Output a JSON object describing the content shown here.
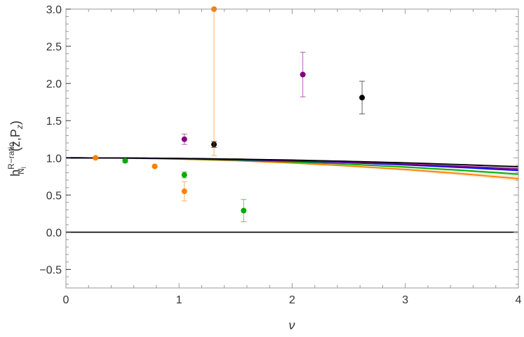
{
  "chart_data": {
    "type": "scatter",
    "xlabel": "ν",
    "ylabel": {
      "base": "h",
      "sup": "R−ratio",
      "sub": "N",
      "subsub": "l",
      "args": "(z,P",
      "args_sub": "z",
      "args_end": ")"
    },
    "xlim": [
      0,
      4
    ],
    "ylim": [
      -0.75,
      3.0
    ],
    "xticks": [
      0,
      1,
      2,
      3,
      4
    ],
    "xtick_labels": [
      "0",
      "1",
      "2",
      "3",
      "4"
    ],
    "yticks": [
      -0.5,
      0.0,
      0.5,
      1.0,
      1.5,
      2.0,
      2.5,
      3.0
    ],
    "ytick_labels": [
      "−0.5",
      "0.0",
      "0.5",
      "1.0",
      "1.5",
      "2.0",
      "2.5",
      "3.0"
    ],
    "grid": false,
    "reference_line_y": 0,
    "points": [
      {
        "x": 0.262,
        "y": 1.0,
        "err": 0.01,
        "color": "#ff7f00"
      },
      {
        "x": 0.524,
        "y": 0.96,
        "err": 0.02,
        "color": "#00aa00"
      },
      {
        "x": 0.785,
        "y": 0.885,
        "err": 0.015,
        "color": "#ff7f00"
      },
      {
        "x": 1.047,
        "y": 1.25,
        "err": 0.07,
        "color": "#800080"
      },
      {
        "x": 1.047,
        "y": 0.77,
        "err": 0.04,
        "color": "#00aa00"
      },
      {
        "x": 1.047,
        "y": 0.55,
        "err": 0.13,
        "color": "#ff7f00"
      },
      {
        "x": 1.309,
        "y": 1.18,
        "err": 0.04,
        "color": "#000000"
      },
      {
        "x": 1.309,
        "y": 3.0,
        "err_low": 1.97,
        "err_high": 0,
        "color": "#ff7f00"
      },
      {
        "x": 1.571,
        "y": 0.29,
        "err": 0.15,
        "color": "#00aa00"
      },
      {
        "x": 2.094,
        "y": 2.12,
        "err": 0.3,
        "color": "#800080"
      },
      {
        "x": 2.618,
        "y": 1.81,
        "err": 0.22,
        "color": "#000000"
      }
    ],
    "curves_x": [
      0,
      0.5,
      1,
      1.5,
      2,
      2.5,
      3,
      3.5,
      4
    ],
    "curves": [
      {
        "color": "#ff7f00",
        "band": 0.03,
        "values": [
          1,
          0.996,
          0.983,
          0.961,
          0.93,
          0.891,
          0.843,
          0.786,
          0.72
        ]
      },
      {
        "color": "#00aa00",
        "band": 0.02,
        "values": [
          1,
          0.997,
          0.986,
          0.969,
          0.945,
          0.914,
          0.876,
          0.832,
          0.78
        ]
      },
      {
        "color": "#0000ff",
        "band": 0.01,
        "values": [
          1,
          0.997,
          0.989,
          0.976,
          0.958,
          0.934,
          0.905,
          0.87,
          0.83
        ]
      },
      {
        "color": "#800080",
        "band": 0.01,
        "values": [
          1,
          0.998,
          0.991,
          0.979,
          0.962,
          0.941,
          0.915,
          0.885,
          0.85
        ]
      },
      {
        "color": "#000000",
        "band": 0.012,
        "values": [
          1,
          0.998,
          0.993,
          0.983,
          0.97,
          0.953,
          0.933,
          0.908,
          0.88
        ]
      }
    ]
  }
}
